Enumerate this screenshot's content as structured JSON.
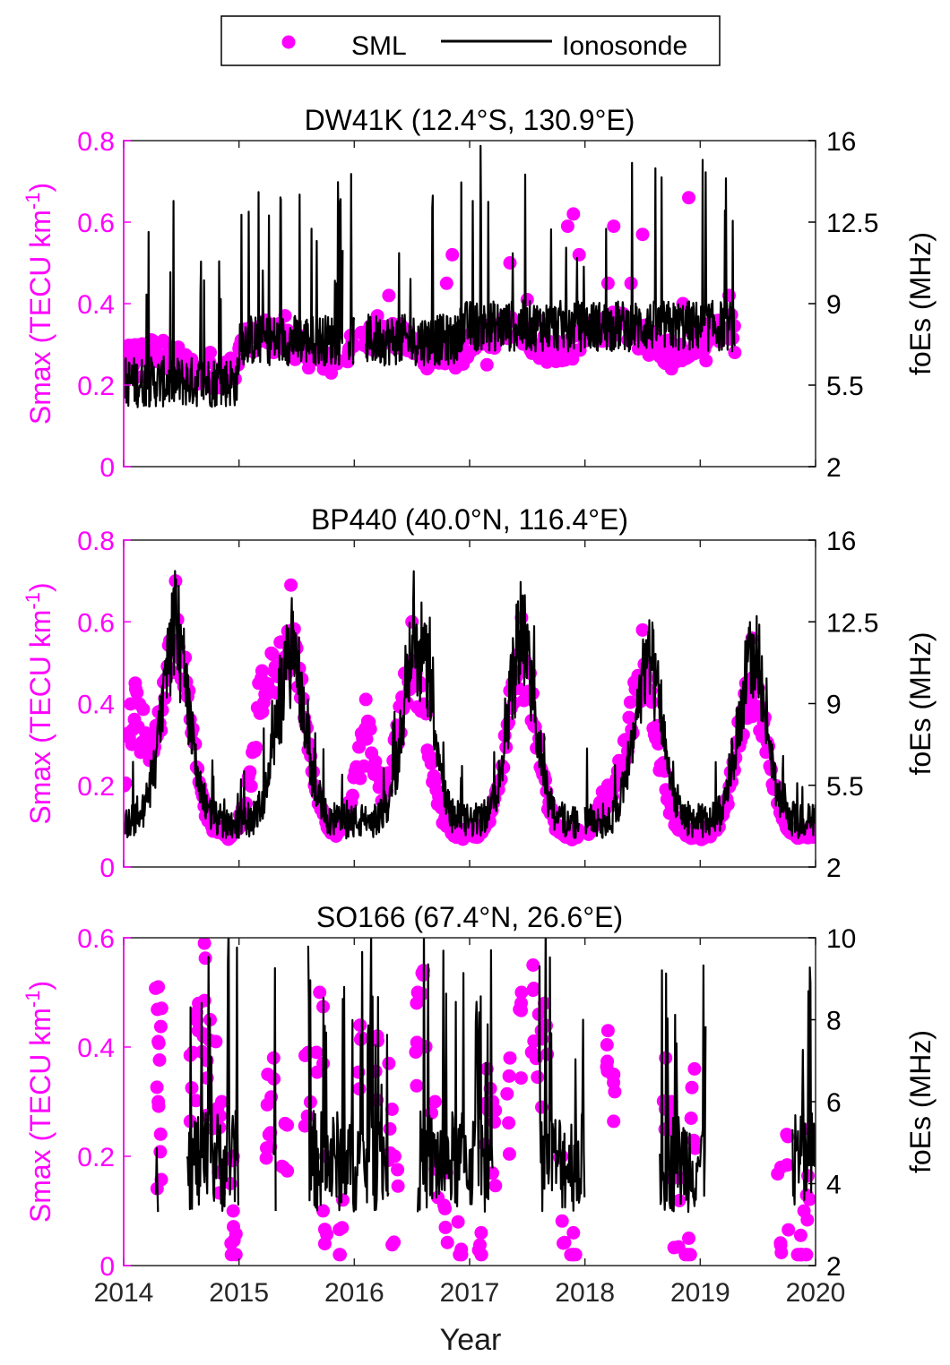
{
  "legend": {
    "sml_label": "SML",
    "iono_label": "Ionosonde"
  },
  "colors": {
    "sml": "#ff00ff",
    "iono": "#000000",
    "axis_left": "#ff00ff",
    "axis_right": "#000000"
  },
  "xaxis": {
    "label": "Year",
    "ticks": [
      "2014",
      "2015",
      "2016",
      "2017",
      "2018",
      "2019",
      "2020"
    ]
  },
  "chart_data": [
    {
      "type": "scatter+line",
      "title": "DW41K (12.4°S, 130.9°E)",
      "xlim": [
        2014,
        2020
      ],
      "ylabel_left": "Smax (TECU km^-1)",
      "ylim_left": [
        0,
        0.8
      ],
      "yticks_left": [
        "0",
        "0.2",
        "0.4",
        "0.6",
        "0.8"
      ],
      "ylabel_right": "foEs (MHz)",
      "ylim_right": [
        2,
        16
      ],
      "yticks_right": [
        "2",
        "5.5",
        "9",
        "12.5",
        "16"
      ],
      "sml_pattern": "flat",
      "sml": [
        [
          2014.05,
          0.25
        ],
        [
          2014.15,
          0.22
        ],
        [
          2014.25,
          0.27
        ],
        [
          2014.35,
          0.24
        ],
        [
          2014.45,
          0.26
        ],
        [
          2014.55,
          0.21
        ],
        [
          2014.65,
          0.23
        ],
        [
          2014.75,
          0.28
        ],
        [
          2014.85,
          0.24
        ],
        [
          2015.0,
          0.29
        ],
        [
          2015.1,
          0.32
        ],
        [
          2015.2,
          0.34
        ],
        [
          2015.3,
          0.28
        ],
        [
          2015.4,
          0.37
        ],
        [
          2015.5,
          0.31
        ],
        [
          2015.6,
          0.29
        ],
        [
          2015.7,
          0.26
        ],
        [
          2015.8,
          0.23
        ],
        [
          2015.95,
          0.28
        ],
        [
          2016.1,
          0.3
        ],
        [
          2016.2,
          0.37
        ],
        [
          2016.3,
          0.42
        ],
        [
          2016.4,
          0.35
        ],
        [
          2016.5,
          0.29
        ],
        [
          2016.6,
          0.32
        ],
        [
          2016.7,
          0.27
        ],
        [
          2016.8,
          0.45
        ],
        [
          2016.85,
          0.52
        ],
        [
          2016.95,
          0.31
        ],
        [
          2017.05,
          0.29
        ],
        [
          2017.15,
          0.25
        ],
        [
          2017.3,
          0.33
        ],
        [
          2017.35,
          0.5
        ],
        [
          2017.5,
          0.41
        ],
        [
          2017.6,
          0.36
        ],
        [
          2017.7,
          0.29
        ],
        [
          2017.8,
          0.26
        ],
        [
          2017.85,
          0.59
        ],
        [
          2017.9,
          0.62
        ],
        [
          2017.95,
          0.52
        ],
        [
          2018.1,
          0.33
        ],
        [
          2018.2,
          0.45
        ],
        [
          2018.25,
          0.59
        ],
        [
          2018.4,
          0.45
        ],
        [
          2018.5,
          0.57
        ],
        [
          2018.55,
          0.32
        ],
        [
          2018.65,
          0.27
        ],
        [
          2018.75,
          0.24
        ],
        [
          2018.85,
          0.4
        ],
        [
          2018.9,
          0.66
        ],
        [
          2018.95,
          0.3
        ],
        [
          2019.05,
          0.26
        ],
        [
          2019.15,
          0.34
        ],
        [
          2019.25,
          0.42
        ],
        [
          2019.3,
          0.28
        ]
      ],
      "iono_pattern": "flat",
      "iono_segments": [
        [
          2014.0,
          2015.9
        ],
        [
          2015.95,
          2016.0
        ],
        [
          2016.1,
          2019.3
        ]
      ]
    },
    {
      "type": "scatter+line",
      "title": "BP440 (40.0°N, 116.4°E)",
      "xlim": [
        2014,
        2020
      ],
      "ylabel_left": "Smax (TECU km^-1)",
      "ylim_left": [
        0,
        0.8
      ],
      "yticks_left": [
        "0",
        "0.2",
        "0.4",
        "0.6",
        "0.8"
      ],
      "ylabel_right": "foEs (MHz)",
      "ylim_right": [
        2,
        16
      ],
      "yticks_right": [
        "2",
        "5.5",
        "9",
        "12.5",
        "16"
      ],
      "sml_pattern": "seasonal-peaks",
      "sml_peaks": [
        [
          2014.45,
          0.7
        ],
        [
          2015.45,
          0.69
        ],
        [
          2016.5,
          0.6
        ],
        [
          2017.45,
          0.61
        ],
        [
          2018.5,
          0.58
        ],
        [
          2019.45,
          0.56
        ]
      ],
      "sml_secondary": [
        [
          2014.1,
          0.45
        ],
        [
          2015.2,
          0.48
        ],
        [
          2016.1,
          0.41
        ],
        [
          2018.2,
          0.2
        ]
      ],
      "iono_pattern": "seasonal-peaks",
      "iono_peaks": [
        [
          2014.45,
          14.3
        ],
        [
          2015.45,
          13.2
        ],
        [
          2016.55,
          14.4
        ],
        [
          2017.45,
          13.9
        ],
        [
          2018.55,
          12.7
        ],
        [
          2019.45,
          12.9
        ]
      ],
      "iono_segments": [
        [
          2014.0,
          2017.95
        ],
        [
          2018.0,
          2020.0
        ]
      ]
    },
    {
      "type": "scatter+line",
      "title": "SO166 (67.4°N, 26.6°E)",
      "xlim": [
        2014,
        2020
      ],
      "xlabel": "Year",
      "ylabel_left": "Smax (TECU km^-1)",
      "ylim_left": [
        0,
        0.6
      ],
      "yticks_left": [
        "0",
        "0.2",
        "0.4",
        "0.6"
      ],
      "ylabel_right": "foEs (MHz)",
      "ylim_right": [
        2,
        10
      ],
      "yticks_right": [
        "2",
        "4",
        "6",
        "8",
        "10"
      ],
      "sml_pattern": "sparse",
      "sml": [
        [
          2014.3,
          0.51
        ],
        [
          2014.3,
          0.41
        ],
        [
          2014.3,
          0.3
        ],
        [
          2014.6,
          0.39
        ],
        [
          2014.65,
          0.48
        ],
        [
          2014.7,
          0.59
        ],
        [
          2014.75,
          0.45
        ],
        [
          2014.8,
          0.41
        ],
        [
          2014.85,
          0.3
        ],
        [
          2014.95,
          0.2
        ],
        [
          2014.95,
          0.1
        ],
        [
          2015.25,
          0.35
        ],
        [
          2015.3,
          0.38
        ],
        [
          2015.4,
          0.26
        ],
        [
          2015.6,
          0.39
        ],
        [
          2015.7,
          0.5
        ],
        [
          2015.75,
          0.2
        ],
        [
          2015.9,
          0.12
        ],
        [
          2016.05,
          0.44
        ],
        [
          2016.2,
          0.42
        ],
        [
          2016.3,
          0.37
        ],
        [
          2016.35,
          0.2
        ],
        [
          2016.55,
          0.5
        ],
        [
          2016.6,
          0.54
        ],
        [
          2016.7,
          0.3
        ],
        [
          2016.8,
          0.17
        ],
        [
          2016.9,
          0.08
        ],
        [
          2017.1,
          0.06
        ],
        [
          2017.15,
          0.36
        ],
        [
          2017.2,
          0.3
        ],
        [
          2017.35,
          0.38
        ],
        [
          2017.45,
          0.5
        ],
        [
          2017.55,
          0.55
        ],
        [
          2017.6,
          0.46
        ],
        [
          2017.65,
          0.48
        ],
        [
          2017.8,
          0.2
        ],
        [
          2017.9,
          0.06
        ],
        [
          2018.2,
          0.43
        ],
        [
          2018.25,
          0.35
        ],
        [
          2018.7,
          0.38
        ],
        [
          2018.75,
          0.3
        ],
        [
          2018.8,
          0.2
        ],
        [
          2018.9,
          0.05
        ],
        [
          2018.95,
          0.36
        ],
        [
          2019.7,
          0.18
        ],
        [
          2019.75,
          0.24
        ],
        [
          2019.85,
          0.02
        ],
        [
          2019.9,
          0.1
        ],
        [
          2019.95,
          0.25
        ]
      ],
      "iono_pattern": "bursts",
      "iono_segments": [
        [
          2014.28,
          2014.3
        ],
        [
          2014.55,
          2015.0
        ],
        [
          2015.3,
          2015.32
        ],
        [
          2015.6,
          2016.3
        ],
        [
          2016.55,
          2017.2
        ],
        [
          2017.6,
          2018.0
        ],
        [
          2018.65,
          2019.05
        ],
        [
          2019.8,
          2020.0
        ]
      ]
    }
  ]
}
